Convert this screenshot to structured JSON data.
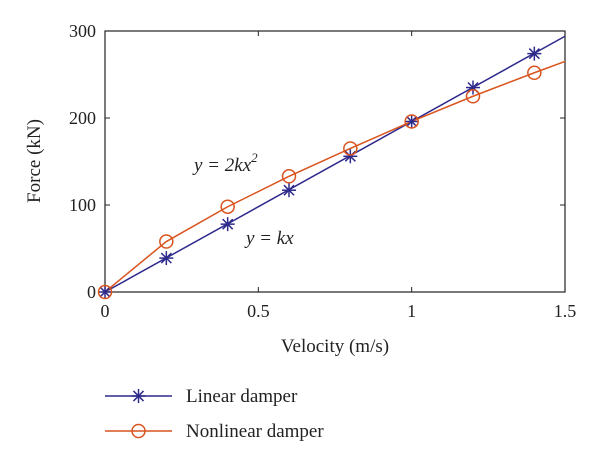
{
  "chart_data": {
    "type": "line",
    "xlabel": "Velocity (m/s)",
    "ylabel": "Force (kN)",
    "xlim": [
      0,
      1.5
    ],
    "ylim": [
      0,
      300
    ],
    "xticks": [
      0,
      0.5,
      1,
      1.5
    ],
    "xtick_labels": [
      "0",
      "0.5",
      "1",
      "1.5"
    ],
    "yticks": [
      0,
      100,
      200,
      300
    ],
    "ytick_labels": [
      "0",
      "100",
      "200",
      "300"
    ],
    "grid": false,
    "legend_placement": "bottom-left, below plot",
    "annotations": {
      "nonlinear_prefix": "y = 2kx",
      "nonlinear_superscript": "2",
      "linear": "y = kx"
    },
    "series": [
      {
        "name": "Linear damper",
        "color": "#2e2a8c",
        "marker": "asterisk",
        "line_x": [
          0,
          1.5
        ],
        "line_y": [
          0,
          294
        ],
        "marker_x": [
          0,
          0.2,
          0.4,
          0.6,
          0.8,
          1.0,
          1.2,
          1.4
        ],
        "marker_y": [
          0,
          39,
          78,
          117,
          156,
          196,
          235,
          274
        ]
      },
      {
        "name": "Nonlinear damper",
        "color": "#d9541e",
        "marker": "circle",
        "line_x": [
          0,
          0.2,
          0.4,
          0.6,
          0.8,
          1.0,
          1.2,
          1.4,
          1.5
        ],
        "line_y": [
          0,
          58,
          98,
          133,
          165,
          196,
          225,
          252,
          265
        ],
        "marker_x": [
          0,
          0.2,
          0.4,
          0.6,
          0.8,
          1.0,
          1.2,
          1.4
        ],
        "marker_y": [
          0,
          58,
          98,
          133,
          165,
          196,
          225,
          252
        ]
      }
    ]
  }
}
